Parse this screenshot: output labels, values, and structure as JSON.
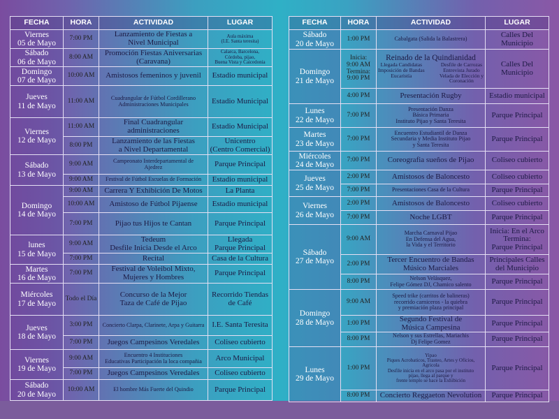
{
  "headers": {
    "fecha": "FECHA",
    "hora": "HORA",
    "actividad": "ACTIVIDAD",
    "lugar": "LUGAR"
  },
  "left_table": [
    {
      "fecha": "Viernes\n05 de Mayo",
      "events": [
        {
          "hora": "7:00 PM",
          "actividad": "Lanzamiento de Fiestas a\nNivel Municipal",
          "lugar": "Aula máxima\n(I.E. Santa teresita)"
        }
      ]
    },
    {
      "fecha": "Sábado\n06 de Mayo",
      "events": [
        {
          "hora": "8:00 AM",
          "actividad": "Promoción Fiestas Aniversarias\n(Caravana)",
          "lugar": "Calarca, Barcelona,\nCórdoba, pijao,\nBuena Vista y Caicedonia"
        }
      ]
    },
    {
      "fecha": "Domingo\n07 de Mayo",
      "events": [
        {
          "hora": "10:00 AM",
          "actividad": "Amistosos femeninos y juvenil",
          "lugar": "Estadio municipal"
        }
      ]
    },
    {
      "fecha": "Jueves\n11 de Mayo",
      "events": [
        {
          "hora": "11:00 AM",
          "actividad": "Cuadrangular de  Fútbol Cordillerano\nAdministraciones Municipales",
          "lugar": "Estadio Municipal"
        }
      ]
    },
    {
      "fecha": "Viernes\n12 de Mayo",
      "events": [
        {
          "hora": "11:00 AM",
          "actividad": "Final Cuadrangular\nadministraciones",
          "lugar": "Estadio Municipal"
        },
        {
          "hora": "8:00 PM",
          "actividad": "Lanzamiento de las Fiestas\na Nivel Departamental",
          "lugar": "Unicentro\n(Centro Comercial)"
        }
      ]
    },
    {
      "fecha": "Sábado\n13 de Mayo",
      "events": [
        {
          "hora": "9:00 AM",
          "actividad": "Campeonato Interdepartamental de\nAjedrez",
          "lugar": "Parque Principal"
        },
        {
          "hora": "9:00 AM",
          "actividad": "Festival de Fútbol Escuelas de Formación",
          "lugar": "Estadio municipal"
        }
      ]
    },
    {
      "fecha": "Domingo\n14 de Mayo",
      "events": [
        {
          "hora": "9:00 AM",
          "actividad": "Carrera Y Exhibición De Motos",
          "lugar": "La Planta"
        },
        {
          "hora": "10:00 AM",
          "actividad": "Amistoso de Fútbol Pijaense",
          "lugar": "Estadio municipal"
        },
        {
          "hora": "7:00 PM",
          "actividad": "Pijao tus Hijos te Cantan",
          "lugar": "Parque Principal"
        }
      ]
    },
    {
      "fecha": "lunes\n15 de Mayo",
      "events": [
        {
          "hora": "9:00 AM",
          "actividad": "Tedeum\nDesfile Inicia Desde el Arco",
          "lugar": "Llegada\nParque Principal"
        },
        {
          "hora": "7:00 PM",
          "actividad": "Recital",
          "lugar": "Casa de la Cultura"
        }
      ]
    },
    {
      "fecha": "Martes\n16 de Mayo",
      "events": [
        {
          "hora": "7:00 PM",
          "actividad": "Festival de Voleibol Mixto,\nMujeres y Hombres",
          "lugar": "Parque Principal"
        }
      ]
    },
    {
      "fecha": "Miércoles\n17 de Mayo",
      "events": [
        {
          "hora": "Todo el Día",
          "actividad": "Concurso de la Mejor\nTaza de Café de Pijao",
          "lugar": "Recorrido Tiendas\nde Café"
        }
      ]
    },
    {
      "fecha": "Jueves\n18 de Mayo",
      "events": [
        {
          "hora": "3:00 PM",
          "actividad": "Concierto Clarpa, Clarinete, Arpa y Guitarra",
          "lugar": "I.E. Santa Teresita"
        },
        {
          "hora": "7:00 PM",
          "actividad": "Juegos Campesinos Veredales",
          "lugar": "Coliseo cubierto"
        }
      ]
    },
    {
      "fecha": "Viernes\n19 de Mayo",
      "events": [
        {
          "hora": "9:00 AM",
          "actividad": "Encuentro 4 Instituciones\nEducativas Participación la loca compañia",
          "lugar": "Arco Municipal"
        },
        {
          "hora": "7:00 PM",
          "actividad": "Juegos Campesinos Veredales",
          "lugar": "Coliseo cubierto"
        }
      ]
    },
    {
      "fecha": "Sábado\n20 de Mayo",
      "events": [
        {
          "hora": "10:00 AM",
          "actividad": "El hombre Más Fuerte del Quindio",
          "lugar": "Parque Principal"
        }
      ]
    }
  ],
  "right_table": [
    {
      "fecha": "Sábado\n20 de Mayo",
      "events": [
        {
          "hora": "1:00 PM",
          "actividad": "Cabalgata (Salida la Balastrera)",
          "lugar": "Calles Del Municipio"
        }
      ]
    },
    {
      "fecha": "Domingo\n21 de Mayo",
      "events": [
        {
          "hora": "Inicia:\n9:00 AM\nTermina:\n9:00 PM",
          "actividad": "Reinado de la Quindianidad",
          "actividad_left": "Llegada Candidatas\nImposición de Bandas\nEucaristía",
          "actividad_right": "Desfile de Carrozas\nEntrevista Jurado\nVelada de Elección y\nCoronación",
          "lugar": "Calles Del Municipio"
        },
        {
          "hora": "4:00 PM",
          "actividad": "Presentación Rugby",
          "lugar": "Estadio municipal"
        }
      ]
    },
    {
      "fecha": "Lunes\n22 de Mayo",
      "events": [
        {
          "hora": "7:00 PM",
          "actividad": "Presentación Danza\nBásica Primaria\nInstituto Pijao y Santa Teresita",
          "lugar": "Parque Principal"
        }
      ]
    },
    {
      "fecha": "Martes\n23 de Mayo",
      "events": [
        {
          "hora": "7:00 PM",
          "actividad": "Encuentro Estudiantil de Danza\nSecundaria y Media Instituto Pijao\ny Santa Teresita",
          "lugar": "Parque Principal"
        }
      ]
    },
    {
      "fecha": "Miércoles\n24 de Mayo",
      "events": [
        {
          "hora": "7:00 PM",
          "actividad": "Coreografia sueños de Pijao",
          "lugar": "Coliseo cubierto"
        }
      ]
    },
    {
      "fecha": "Jueves\n25 de Mayo",
      "events": [
        {
          "hora": "2:00 PM",
          "actividad": "Amistosos de Baloncesto",
          "lugar": "Coliseo cubierto"
        },
        {
          "hora": "7:00 PM",
          "actividad": "Presentaciones Casa de la Cultura",
          "lugar": "Parque Principal"
        }
      ]
    },
    {
      "fecha": "Viernes\n26 de Mayo",
      "events": [
        {
          "hora": "2:00 PM",
          "actividad": "Amistosos de Baloncesto",
          "lugar": "Coliseo cubierto"
        },
        {
          "hora": "7:00 PM",
          "actividad": "Noche LGBT",
          "lugar": "Parque Principal"
        }
      ]
    },
    {
      "fecha": "Sábado\n27 de Mayo",
      "events": [
        {
          "hora": "9:00 AM",
          "actividad": "Marcha Carnaval Pijao\nEn Defensa del Agua,\nla Vida y el Territorio",
          "lugar": "Inicia: En el Arco\nTermina:\nParque Principal"
        },
        {
          "hora": "2:00 PM",
          "actividad": "Tercer Encuentro de Bandas\nMúsico Marciales",
          "lugar": "Principales Calles\ndel Municipio"
        },
        {
          "hora": "8:00 PM",
          "actividad": "Nelson Velásquez,\nFelipe Gómez DJ, Chamico salento",
          "lugar": "Parque Principal"
        }
      ]
    },
    {
      "fecha": "Domingo\n28 de Mayo",
      "events": [
        {
          "hora": "9:00 AM",
          "actividad": "Speed trike (carritos de balineras)\nrecorrido carniceros - la quiebra\ny premiación plaza principal",
          "lugar": "Parque Principal"
        },
        {
          "hora": "1:00 PM",
          "actividad": "Segundo Festival de\nMúsica Campesina",
          "lugar": "Parque Principal"
        },
        {
          "hora": "8:00 PM",
          "actividad": "Nelson y sus Estrellas, Mariachis\nDj Felipe Gomez",
          "lugar": "Parque Principal"
        }
      ]
    },
    {
      "fecha": "Lunes\n29 de Mayo",
      "events": [
        {
          "hora": "1:00 PM",
          "actividad": "Yipao\nPiques Acrobaticos, Trasteo, Artes y Oficios,\nAgricola\nDesfile inicia en el arco pasa por el instituto\npijao, llega al parque y\nfrente templo se hace la Exhibición",
          "lugar": "Parque Principal"
        },
        {
          "hora": "8:00 PM",
          "actividad": "Concierto Reggaeton Nevolution",
          "lugar": "Parque Principal"
        }
      ]
    }
  ]
}
